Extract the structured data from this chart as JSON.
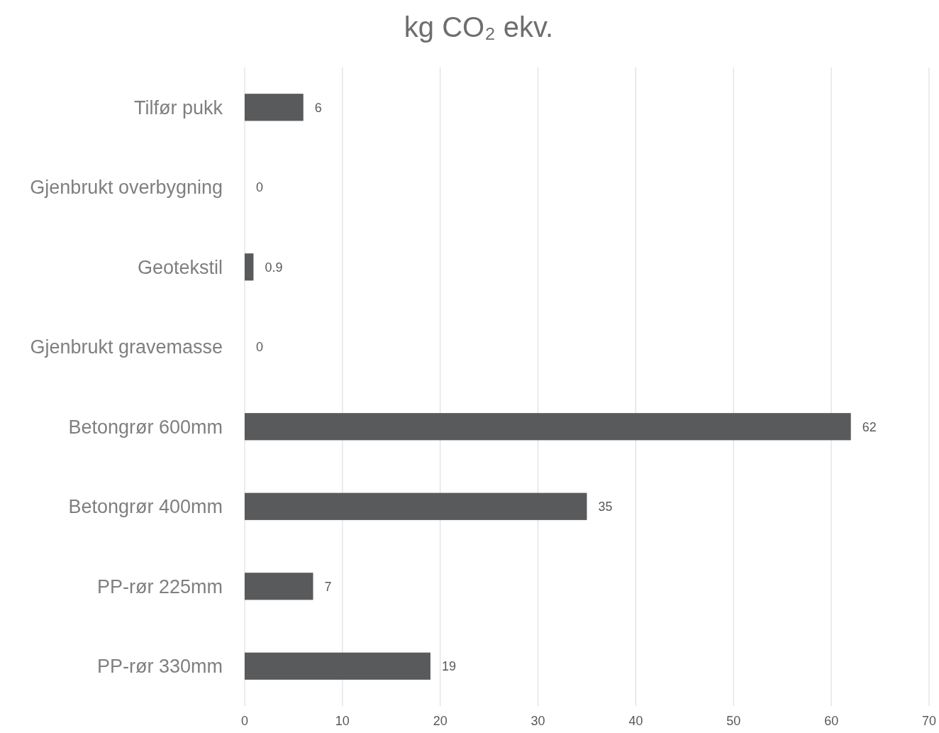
{
  "chart_data": {
    "type": "bar",
    "orientation": "horizontal",
    "title": "kg CO₂ ekv.",
    "categories": [
      "Tilfør pukk",
      "Gjenbrukt overbygning",
      "Geotekstil",
      "Gjenbrukt gravemasse",
      "Betongrør 600mm",
      "Betongrør 400mm",
      "PP-rør 225mm",
      "PP-rør 330mm"
    ],
    "values": [
      6,
      0,
      0.9,
      0,
      62,
      35,
      7,
      19
    ],
    "color": "#595a5c",
    "xlim": [
      0,
      70
    ],
    "xticks": [
      0,
      10,
      20,
      30,
      40,
      50,
      60,
      70
    ],
    "grid": "x",
    "data_labels": true
  }
}
